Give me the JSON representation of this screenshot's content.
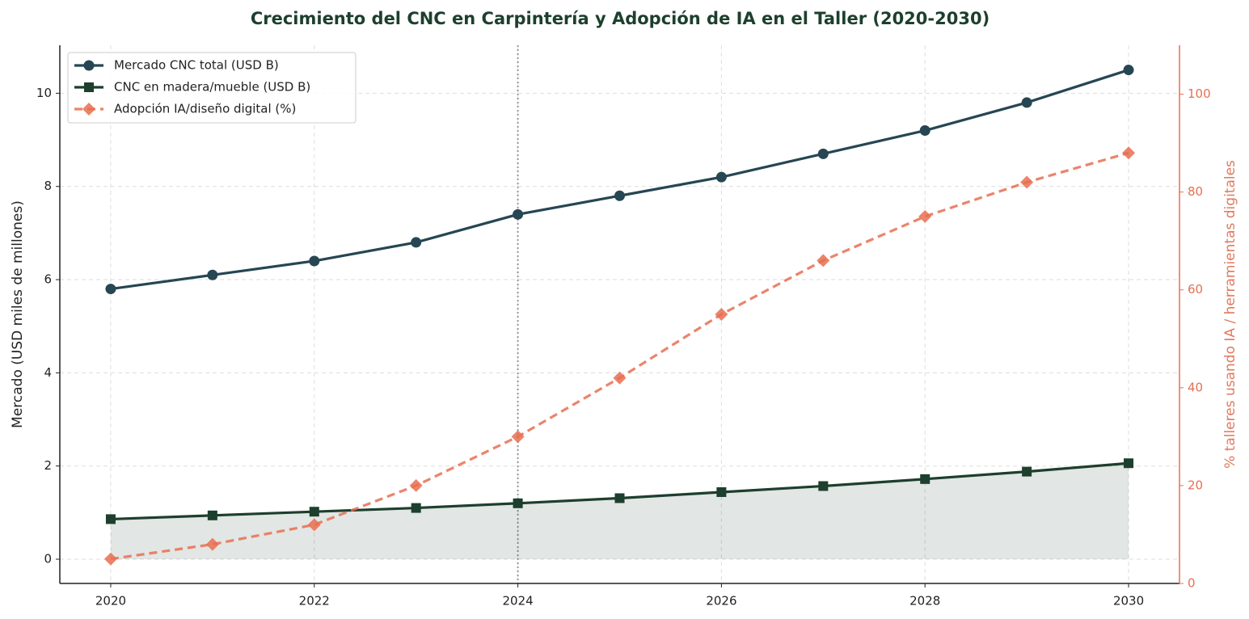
{
  "chart_data": {
    "type": "line",
    "title": "Crecimiento del CNC en Carpintería y Adopción de IA en el Taller (2020-2030)",
    "ylabel": "Mercado (USD miles de millones)",
    "y2label": "% talleres usando IA / herramientas digitales",
    "x": [
      2020,
      2021,
      2022,
      2023,
      2024,
      2025,
      2026,
      2027,
      2028,
      2029,
      2030
    ],
    "xlim": [
      2019.5,
      2030.5
    ],
    "xticks": [
      2020,
      2022,
      2024,
      2026,
      2028,
      2030
    ],
    "ylim": [
      -0.52,
      11.03
    ],
    "yticks": [
      0,
      2,
      4,
      6,
      8,
      10
    ],
    "y2lim": [
      0,
      110
    ],
    "y2ticks": [
      0,
      20,
      40,
      60,
      80,
      100
    ],
    "grid": true,
    "legend": "upper left",
    "vline": 2024,
    "series": [
      {
        "name": "Mercado CNC total (USD B)",
        "color": "#264653",
        "marker": "circle",
        "linestyle": "solid",
        "values": [
          5.8,
          6.1,
          6.4,
          6.8,
          7.4,
          7.8,
          8.2,
          8.7,
          9.2,
          9.8,
          10.5
        ]
      },
      {
        "name": "CNC en madera/mueble (USD B)",
        "color": "#1d3f2e",
        "marker": "square",
        "linestyle": "solid",
        "fill": true,
        "values": [
          0.86,
          0.94,
          1.02,
          1.1,
          1.2,
          1.31,
          1.44,
          1.57,
          1.72,
          1.88,
          2.06
        ]
      },
      {
        "name": "Adopción IA/diseño digital (%)",
        "color": "#e76f51",
        "marker": "diamond",
        "linestyle": "dashed",
        "axis": "y2",
        "values": [
          5,
          8,
          12,
          20,
          30,
          42,
          55,
          66,
          75,
          82,
          88
        ]
      }
    ]
  }
}
